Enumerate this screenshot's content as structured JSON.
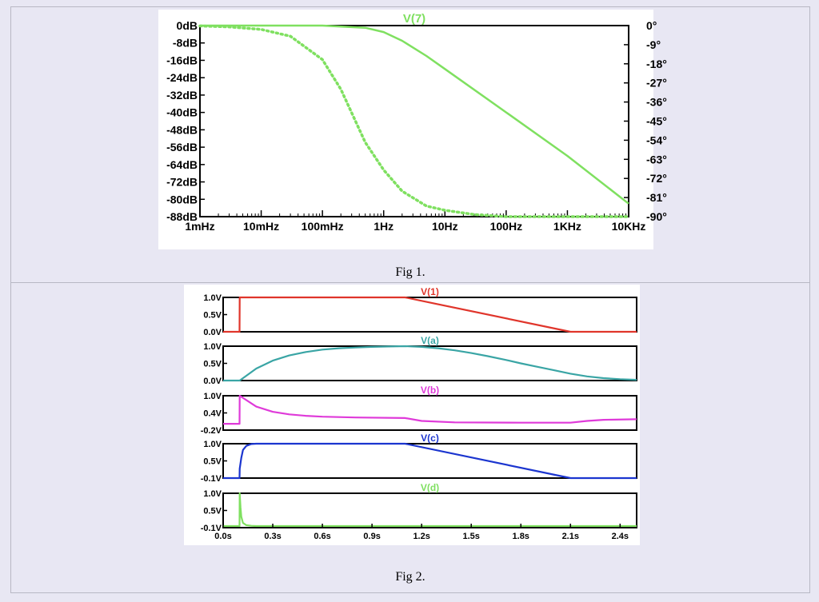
{
  "captions": {
    "fig1": "Fig 1.",
    "fig2": "Fig 2."
  },
  "chart_data": [
    {
      "type": "line",
      "title": "V(7)",
      "x_scale": "log",
      "xlim": [
        "1mHz",
        "10KHz"
      ],
      "x_tick_labels": [
        "1mHz",
        "10mHz",
        "100mHz",
        "1Hz",
        "10Hz",
        "100Hz",
        "1KHz",
        "10KHz"
      ],
      "y_left_ticks": [
        "0dB",
        "-8dB",
        "-16dB",
        "-24dB",
        "-32dB",
        "-40dB",
        "-48dB",
        "-56dB",
        "-64dB",
        "-72dB",
        "-80dB",
        "-88dB"
      ],
      "y_right_ticks": [
        "0°",
        "-9°",
        "-18°",
        "-27°",
        "-36°",
        "-45°",
        "-54°",
        "-63°",
        "-72°",
        "-81°",
        "-90°"
      ],
      "ylim_left_db": [
        -88,
        0
      ],
      "ylim_right_deg": [
        -90,
        0
      ],
      "grid": false,
      "color": "#7fe060",
      "series": [
        {
          "style": "solid",
          "unit": "dB",
          "x_hz": [
            0.001,
            0.01,
            0.1,
            0.5,
            1,
            2,
            5,
            10,
            100,
            1000,
            10000
          ],
          "y": [
            0,
            0,
            0,
            -1,
            -3,
            -7,
            -14,
            -20,
            -40,
            -60,
            -82
          ]
        },
        {
          "style": "dotted",
          "unit": "deg",
          "x_hz": [
            0.001,
            0.003,
            0.01,
            0.03,
            0.1,
            0.2,
            0.5,
            1,
            2,
            5,
            10,
            30,
            100,
            1000,
            10000
          ],
          "y": [
            -0.2,
            -0.6,
            -1.8,
            -5,
            -16,
            -30,
            -55,
            -68,
            -78,
            -85,
            -87,
            -89,
            -90,
            -90,
            -90
          ]
        }
      ]
    },
    {
      "type": "line",
      "x_tick_labels": [
        "0.0s",
        "0.3s",
        "0.6s",
        "0.9s",
        "1.2s",
        "1.5s",
        "1.8s",
        "2.1s",
        "2.4s"
      ],
      "xlim": [
        0,
        2.5
      ],
      "grid": false,
      "panels": [
        {
          "name": "V(1)",
          "color": "#e0352b",
          "y_ticks": [
            "1.0V",
            "0.5V",
            "0.0V"
          ],
          "ylim": [
            0,
            1
          ],
          "x": [
            0,
            0.099,
            0.1,
            1.1,
            2.1,
            2.5
          ],
          "y": [
            0,
            0,
            1,
            1,
            0,
            0
          ]
        },
        {
          "name": "V(a)",
          "color": "#3aa5a5",
          "y_ticks": [
            "1.0V",
            "0.5V",
            "0.0V"
          ],
          "ylim": [
            0,
            1
          ],
          "x": [
            0,
            0.1,
            0.2,
            0.3,
            0.4,
            0.5,
            0.6,
            0.7,
            0.8,
            0.9,
            1.0,
            1.1,
            1.2,
            1.3,
            1.4,
            1.5,
            1.6,
            1.7,
            1.8,
            1.9,
            2.0,
            2.1,
            2.2,
            2.3,
            2.4,
            2.5
          ],
          "y": [
            0,
            0,
            0.35,
            0.58,
            0.73,
            0.83,
            0.9,
            0.94,
            0.96,
            0.98,
            0.99,
            1.0,
            0.98,
            0.94,
            0.88,
            0.8,
            0.71,
            0.61,
            0.5,
            0.4,
            0.3,
            0.2,
            0.12,
            0.07,
            0.04,
            0.02
          ]
        },
        {
          "name": "V(b)",
          "color": "#df3ad9",
          "y_ticks": [
            "1.0V",
            "0.4V",
            "-0.2V"
          ],
          "ylim": [
            -0.2,
            1
          ],
          "x": [
            0,
            0.099,
            0.1,
            0.2,
            0.3,
            0.4,
            0.5,
            0.6,
            0.8,
            1.1,
            1.2,
            1.4,
            1.8,
            2.1,
            2.2,
            2.3,
            2.5
          ],
          "y": [
            0.02,
            0.02,
            1.0,
            0.62,
            0.44,
            0.35,
            0.3,
            0.27,
            0.24,
            0.22,
            0.12,
            0.07,
            0.06,
            0.06,
            0.12,
            0.16,
            0.18
          ]
        },
        {
          "name": "V(c)",
          "color": "#1b35cf",
          "y_ticks": [
            "1.0V",
            "0.5V",
            "-0.1V"
          ],
          "ylim": [
            -0.1,
            1
          ],
          "x": [
            0,
            0.099,
            0.1,
            0.11,
            0.12,
            0.14,
            0.17,
            0.2,
            1.1,
            2.1,
            2.5
          ],
          "y": [
            -0.1,
            -0.1,
            0.2,
            0.55,
            0.8,
            0.93,
            0.99,
            1.0,
            1.0,
            -0.1,
            -0.1
          ]
        },
        {
          "name": "V(d)",
          "color": "#7fe060",
          "y_ticks": [
            "1.0V",
            "0.5V",
            "-0.1V"
          ],
          "ylim": [
            -0.1,
            1
          ],
          "x": [
            0,
            0.099,
            0.1,
            0.105,
            0.11,
            0.12,
            0.14,
            0.17,
            0.2,
            2.5
          ],
          "y": [
            -0.05,
            -0.05,
            1.0,
            0.55,
            0.25,
            0.05,
            -0.02,
            -0.04,
            -0.05,
            -0.05
          ]
        }
      ]
    }
  ]
}
